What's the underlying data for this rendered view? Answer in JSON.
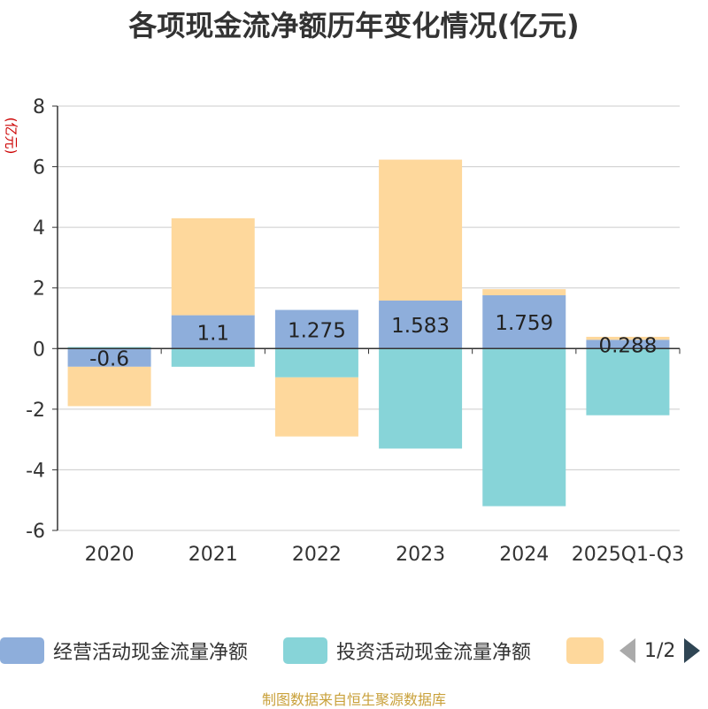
{
  "title": "各项现金流净额历年变化情况(亿元)",
  "footer": "制图数据来自恒生聚源数据库",
  "legend": {
    "items": [
      {
        "label": "经营活动现金流量净额",
        "color": "#8eaedb"
      },
      {
        "label": "投资活动现金流量净额",
        "color": "#87d4d8"
      },
      {
        "label": "",
        "color": "#fed89c"
      }
    ],
    "page": "1/2"
  },
  "chart_data": {
    "type": "bar",
    "stacked": true,
    "ylabel": "(亿元)",
    "ylim": [
      -6,
      8
    ],
    "yticks": [
      -6,
      -4,
      -2,
      0,
      2,
      4,
      6,
      8
    ],
    "categories": [
      "2020",
      "2021",
      "2022",
      "2023",
      "2024",
      "2025Q1-Q3"
    ],
    "series": [
      {
        "name": "经营活动现金流量净额",
        "color": "#8eaedb",
        "values": [
          -0.6,
          1.1,
          1.275,
          1.583,
          1.759,
          0.288
        ],
        "show_labels": true
      },
      {
        "name": "投资活动现金流量净额",
        "color": "#87d4d8",
        "values": [
          0.05,
          -0.6,
          -0.95,
          -3.3,
          -5.2,
          -2.2
        ],
        "show_labels": false
      },
      {
        "name": "",
        "color": "#fed89c",
        "values": [
          -1.3,
          3.2,
          -1.95,
          4.65,
          0.2,
          0.1
        ],
        "show_labels": false
      }
    ],
    "grid": true
  }
}
